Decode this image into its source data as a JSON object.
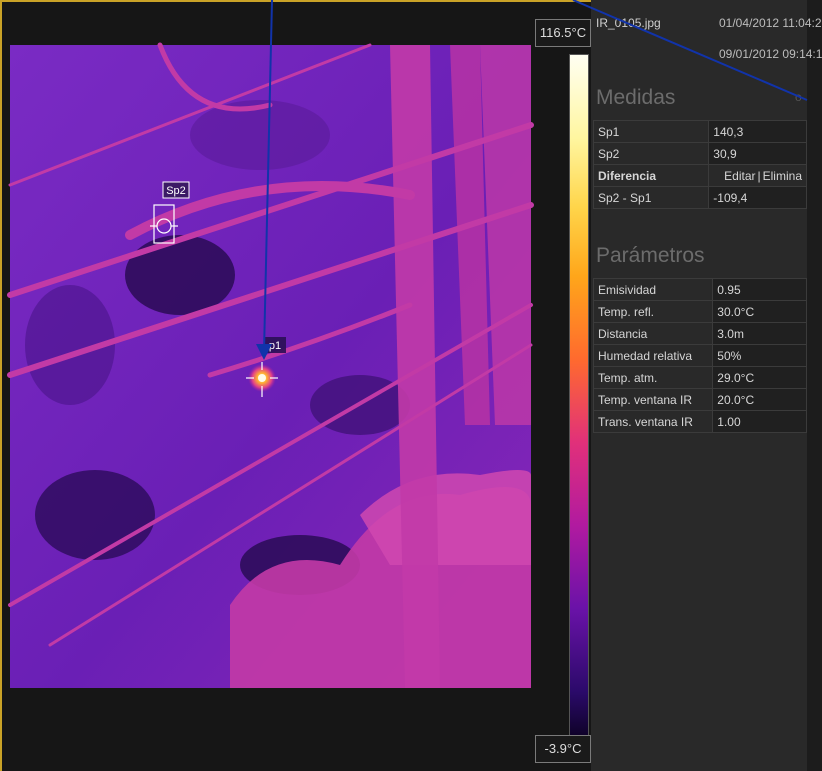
{
  "scale": {
    "max": "116.5°C",
    "min": "-3.9°C"
  },
  "markers": {
    "sp1": "p1",
    "sp2": "Sp2"
  },
  "file": {
    "name": "IR_0105.jpg",
    "date1": "01/04/2012 11:04:2",
    "date2": "09/01/2012 09:14:1"
  },
  "medidas": {
    "title": "Medidas",
    "rows": [
      {
        "label": "Sp1",
        "value": "140,3"
      },
      {
        "label": "Sp2",
        "value": "30,9"
      }
    ],
    "diff_title": "Diferencia",
    "edit_label": "Editar",
    "delete_label": "Elimina",
    "diff_row": {
      "label": "Sp2 - Sp1",
      "value": "-109,4"
    }
  },
  "parametros": {
    "title": "Parámetros",
    "rows": [
      {
        "label": "Emisividad",
        "value": "0.95"
      },
      {
        "label": "Temp. refl.",
        "value": "30.0°C"
      },
      {
        "label": "Distancia",
        "value": "3.0m"
      },
      {
        "label": "Humedad relativa",
        "value": "50%"
      },
      {
        "label": "Temp. atm.",
        "value": "29.0°C"
      },
      {
        "label": "Temp. ventana IR",
        "value": "20.0°C"
      },
      {
        "label": "Trans. ventana IR",
        "value": "1.00"
      }
    ]
  },
  "colors": {
    "accent_border": "#c9a227",
    "arrow": "#1133aa"
  }
}
